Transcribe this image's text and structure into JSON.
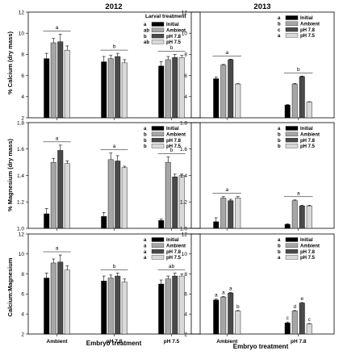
{
  "figure": {
    "column_titles": [
      "2012",
      "2013"
    ],
    "row_ylabels": [
      "% Calcium (dry mass)",
      "% Magnesium (dry mass)",
      "Calcium:Magnesium"
    ],
    "xlabel": "Embryo treatment",
    "legend_title": "Larval treatment",
    "colors": {
      "Initial": "#000000",
      "Ambient": "#a6a6a6",
      "pH 7.8": "#4a4a4a",
      "pH 7.5": "#d9d9d9"
    }
  },
  "chart_data": [
    {
      "id": "ca-2012",
      "type": "bar",
      "row": 0,
      "col": 0,
      "categories": [
        "Ambient",
        "pH 7.8",
        "pH 7.5"
      ],
      "ylim": [
        2,
        12
      ],
      "yticks": [
        2,
        4,
        6,
        8,
        10,
        12
      ],
      "legend_title": "Larval treatment",
      "legend_letters": [
        "a",
        "ab",
        "b",
        "ab"
      ],
      "group_letters": [
        "a",
        "b",
        "b"
      ],
      "series": [
        {
          "name": "Initial",
          "values": [
            7.6,
            7.3,
            6.9
          ],
          "errors": [
            0.5,
            0.5,
            0.4
          ]
        },
        {
          "name": "Ambient",
          "values": [
            9.1,
            7.6,
            7.5
          ],
          "errors": [
            0.4,
            0.3,
            0.3
          ]
        },
        {
          "name": "pH 7.8",
          "values": [
            9.2,
            7.8,
            7.7
          ],
          "errors": [
            0.7,
            0.3,
            0.3
          ]
        },
        {
          "name": "pH 7.5",
          "values": [
            8.4,
            7.2,
            7.7
          ],
          "errors": [
            0.4,
            0.3,
            0.2
          ]
        }
      ]
    },
    {
      "id": "ca-2013",
      "type": "bar",
      "row": 0,
      "col": 1,
      "categories": [
        "Ambient",
        "pH 7.8"
      ],
      "ylim": [
        2,
        12
      ],
      "yticks": [
        4,
        6,
        8,
        10,
        12
      ],
      "legend_letters": [
        "a",
        "b",
        "c",
        "a"
      ],
      "group_letters": [
        "a",
        "b"
      ],
      "series": [
        {
          "name": "Initial",
          "values": [
            5.7,
            3.2
          ],
          "errors": [
            0.15,
            0.05
          ]
        },
        {
          "name": "Ambient",
          "values": [
            7.0,
            5.2
          ],
          "errors": [
            0.05,
            0.05
          ]
        },
        {
          "name": "pH 7.8",
          "values": [
            7.5,
            5.9
          ],
          "errors": [
            0.05,
            0.05
          ]
        },
        {
          "name": "pH 7.5",
          "values": [
            5.2,
            3.5
          ],
          "errors": [
            0.03,
            0.03
          ]
        }
      ]
    },
    {
      "id": "mg-2012",
      "type": "bar",
      "row": 1,
      "col": 0,
      "categories": [
        "Ambient",
        "pH 7.8",
        "pH 7.5"
      ],
      "ylim": [
        1.0,
        1.8
      ],
      "yticks": [
        1.0,
        1.2,
        1.4,
        1.6,
        1.8
      ],
      "legend_letters": [
        "a",
        "b",
        "b",
        "b"
      ],
      "group_letters": [
        "a",
        "a",
        "b"
      ],
      "series": [
        {
          "name": "Initial",
          "values": [
            1.11,
            1.09,
            1.06
          ],
          "errors": [
            0.04,
            0.03,
            0.01
          ]
        },
        {
          "name": "Ambient",
          "values": [
            1.5,
            1.52,
            1.5
          ],
          "errors": [
            0.03,
            0.05,
            0.04
          ]
        },
        {
          "name": "pH 7.8",
          "values": [
            1.59,
            1.51,
            1.39
          ],
          "errors": [
            0.04,
            0.04,
            0.02
          ]
        },
        {
          "name": "pH 7.5",
          "values": [
            1.49,
            1.46,
            1.4
          ],
          "errors": [
            0.02,
            0.01,
            0.01
          ]
        }
      ]
    },
    {
      "id": "mg-2013",
      "type": "bar",
      "row": 1,
      "col": 1,
      "categories": [
        "Ambient",
        "pH 7.8"
      ],
      "ylim": [
        1.0,
        1.8
      ],
      "yticks": [
        1.0,
        1.2,
        1.4,
        1.6,
        1.8
      ],
      "legend_letters": [
        "a",
        "b",
        "b",
        "b"
      ],
      "group_letters": [
        "a",
        "a"
      ],
      "series": [
        {
          "name": "Initial",
          "values": [
            1.05,
            1.03
          ],
          "errors": [
            0.03,
            0.005
          ]
        },
        {
          "name": "Ambient",
          "values": [
            1.23,
            1.21
          ],
          "errors": [
            0.01,
            0.005
          ]
        },
        {
          "name": "pH 7.8",
          "values": [
            1.21,
            1.17
          ],
          "errors": [
            0.01,
            0.005
          ]
        },
        {
          "name": "pH 7.5",
          "values": [
            1.23,
            1.17
          ],
          "errors": [
            0.01,
            0.005
          ]
        }
      ]
    },
    {
      "id": "ratio-2012",
      "type": "bar",
      "row": 2,
      "col": 0,
      "categories": [
        "Ambient",
        "pH 7.8",
        "pH 7.5"
      ],
      "ylim": [
        2,
        12
      ],
      "yticks": [
        2,
        4,
        6,
        8,
        10,
        12
      ],
      "legend_letters": [
        "a",
        "a",
        "a",
        "a"
      ],
      "group_letters": [
        "a",
        "b",
        "ab"
      ],
      "series": [
        {
          "name": "Initial",
          "values": [
            7.6,
            7.3,
            7.0
          ],
          "errors": [
            0.5,
            0.5,
            0.4
          ]
        },
        {
          "name": "Ambient",
          "values": [
            9.1,
            7.6,
            7.5
          ],
          "errors": [
            0.4,
            0.3,
            0.3
          ]
        },
        {
          "name": "pH 7.8",
          "values": [
            9.2,
            7.8,
            7.8
          ],
          "errors": [
            0.7,
            0.3,
            0.3
          ]
        },
        {
          "name": "pH 7.5",
          "values": [
            8.4,
            7.2,
            7.8
          ],
          "errors": [
            0.4,
            0.3,
            0.2
          ]
        }
      ]
    },
    {
      "id": "ratio-2013",
      "type": "bar",
      "row": 2,
      "col": 1,
      "categories": [
        "Ambient",
        "pH 7.8"
      ],
      "ylim": [
        2,
        12
      ],
      "yticks": [
        2,
        4,
        6,
        8,
        10,
        12
      ],
      "legend_letters": [
        "a",
        "b",
        "b",
        "a"
      ],
      "bar_letters": [
        [
          "a",
          "a",
          "a",
          "b"
        ],
        [
          "c",
          "d",
          "e",
          "c"
        ]
      ],
      "series": [
        {
          "name": "Initial",
          "values": [
            5.4,
            3.1
          ],
          "errors": [
            0.1,
            0.1
          ]
        },
        {
          "name": "Ambient",
          "values": [
            5.7,
            4.3
          ],
          "errors": [
            0.05,
            0.05
          ]
        },
        {
          "name": "pH 7.8",
          "values": [
            6.1,
            5.1
          ],
          "errors": [
            0.05,
            0.05
          ]
        },
        {
          "name": "pH 7.5",
          "values": [
            4.3,
            3.0
          ],
          "errors": [
            0.05,
            0.05
          ]
        }
      ]
    }
  ]
}
